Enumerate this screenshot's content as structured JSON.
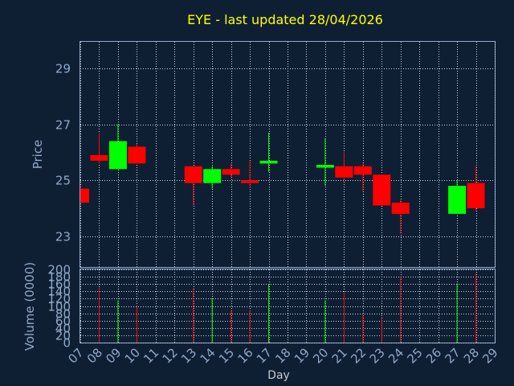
{
  "title": "EYE - last updated 28/04/2026",
  "colors": {
    "background": "#0f1f33",
    "up": "#00ff00",
    "down": "#ff0000",
    "axis": "#8fa8c8",
    "title": "#ffff00"
  },
  "chart_data": [
    {
      "type": "candlestick",
      "ylabel": "Price",
      "ylim": [
        21.9,
        29.95
      ],
      "yticks": [
        23,
        25,
        27,
        29
      ],
      "xlim": [
        7,
        29
      ],
      "grid": true,
      "candles": [
        {
          "day": 7,
          "open": 24.7,
          "close": 24.2,
          "high": 24.8,
          "low": 24.2
        },
        {
          "day": 8,
          "open": 25.9,
          "close": 25.7,
          "high": 26.7,
          "low": 25.6
        },
        {
          "day": 9,
          "open": 25.4,
          "close": 26.4,
          "high": 27.0,
          "low": 25.4
        },
        {
          "day": 10,
          "open": 26.2,
          "close": 25.6,
          "high": 26.3,
          "low": 25.6
        },
        {
          "day": 13,
          "open": 25.5,
          "close": 24.9,
          "high": 25.5,
          "low": 24.1
        },
        {
          "day": 14,
          "open": 24.9,
          "close": 25.4,
          "high": 25.5,
          "low": 24.7
        },
        {
          "day": 15,
          "open": 25.4,
          "close": 25.2,
          "high": 25.6,
          "low": 25.1
        },
        {
          "day": 16,
          "open": 25.0,
          "close": 24.9,
          "high": 25.7,
          "low": 24.8
        },
        {
          "day": 17,
          "open": 25.6,
          "close": 25.7,
          "high": 26.7,
          "low": 25.3
        },
        {
          "day": 20,
          "open": 25.45,
          "close": 25.55,
          "high": 26.5,
          "low": 24.8
        },
        {
          "day": 21,
          "open": 25.5,
          "close": 25.1,
          "high": 26.0,
          "low": 25.0
        },
        {
          "day": 22,
          "open": 25.5,
          "close": 25.2,
          "high": 25.6,
          "low": 24.6
        },
        {
          "day": 23,
          "open": 25.2,
          "close": 24.1,
          "high": 25.2,
          "low": 24.1
        },
        {
          "day": 24,
          "open": 24.2,
          "close": 23.8,
          "high": 24.3,
          "low": 23.1
        },
        {
          "day": 27,
          "open": 23.8,
          "close": 24.8,
          "high": 25.0,
          "low": 23.8
        },
        {
          "day": 28,
          "open": 24.9,
          "close": 24.0,
          "high": 25.5,
          "low": 23.9
        }
      ]
    },
    {
      "type": "bar",
      "ylabel": "Volume (0000)",
      "xlabel": "Day",
      "ylim": [
        0,
        200
      ],
      "yticks": [
        0,
        20,
        40,
        60,
        80,
        100,
        120,
        140,
        160,
        180,
        200
      ],
      "xticks": [
        "07",
        "08",
        "09",
        "10",
        "11",
        "12",
        "13",
        "14",
        "15",
        "16",
        "17",
        "18",
        "19",
        "20",
        "21",
        "22",
        "23",
        "24",
        "25",
        "26",
        "27",
        "28",
        "29"
      ],
      "grid": true,
      "bars": [
        {
          "day": 8,
          "value": 150,
          "dir": "down"
        },
        {
          "day": 9,
          "value": 115,
          "dir": "up"
        },
        {
          "day": 10,
          "value": 100,
          "dir": "down"
        },
        {
          "day": 13,
          "value": 148,
          "dir": "down"
        },
        {
          "day": 14,
          "value": 122,
          "dir": "up"
        },
        {
          "day": 15,
          "value": 88,
          "dir": "down"
        },
        {
          "day": 16,
          "value": 88,
          "dir": "down"
        },
        {
          "day": 17,
          "value": 158,
          "dir": "up"
        },
        {
          "day": 20,
          "value": 115,
          "dir": "up"
        },
        {
          "day": 21,
          "value": 138,
          "dir": "down"
        },
        {
          "day": 22,
          "value": 75,
          "dir": "down"
        },
        {
          "day": 23,
          "value": 65,
          "dir": "down"
        },
        {
          "day": 24,
          "value": 180,
          "dir": "down"
        },
        {
          "day": 27,
          "value": 162,
          "dir": "up"
        },
        {
          "day": 28,
          "value": 190,
          "dir": "down"
        }
      ]
    }
  ]
}
